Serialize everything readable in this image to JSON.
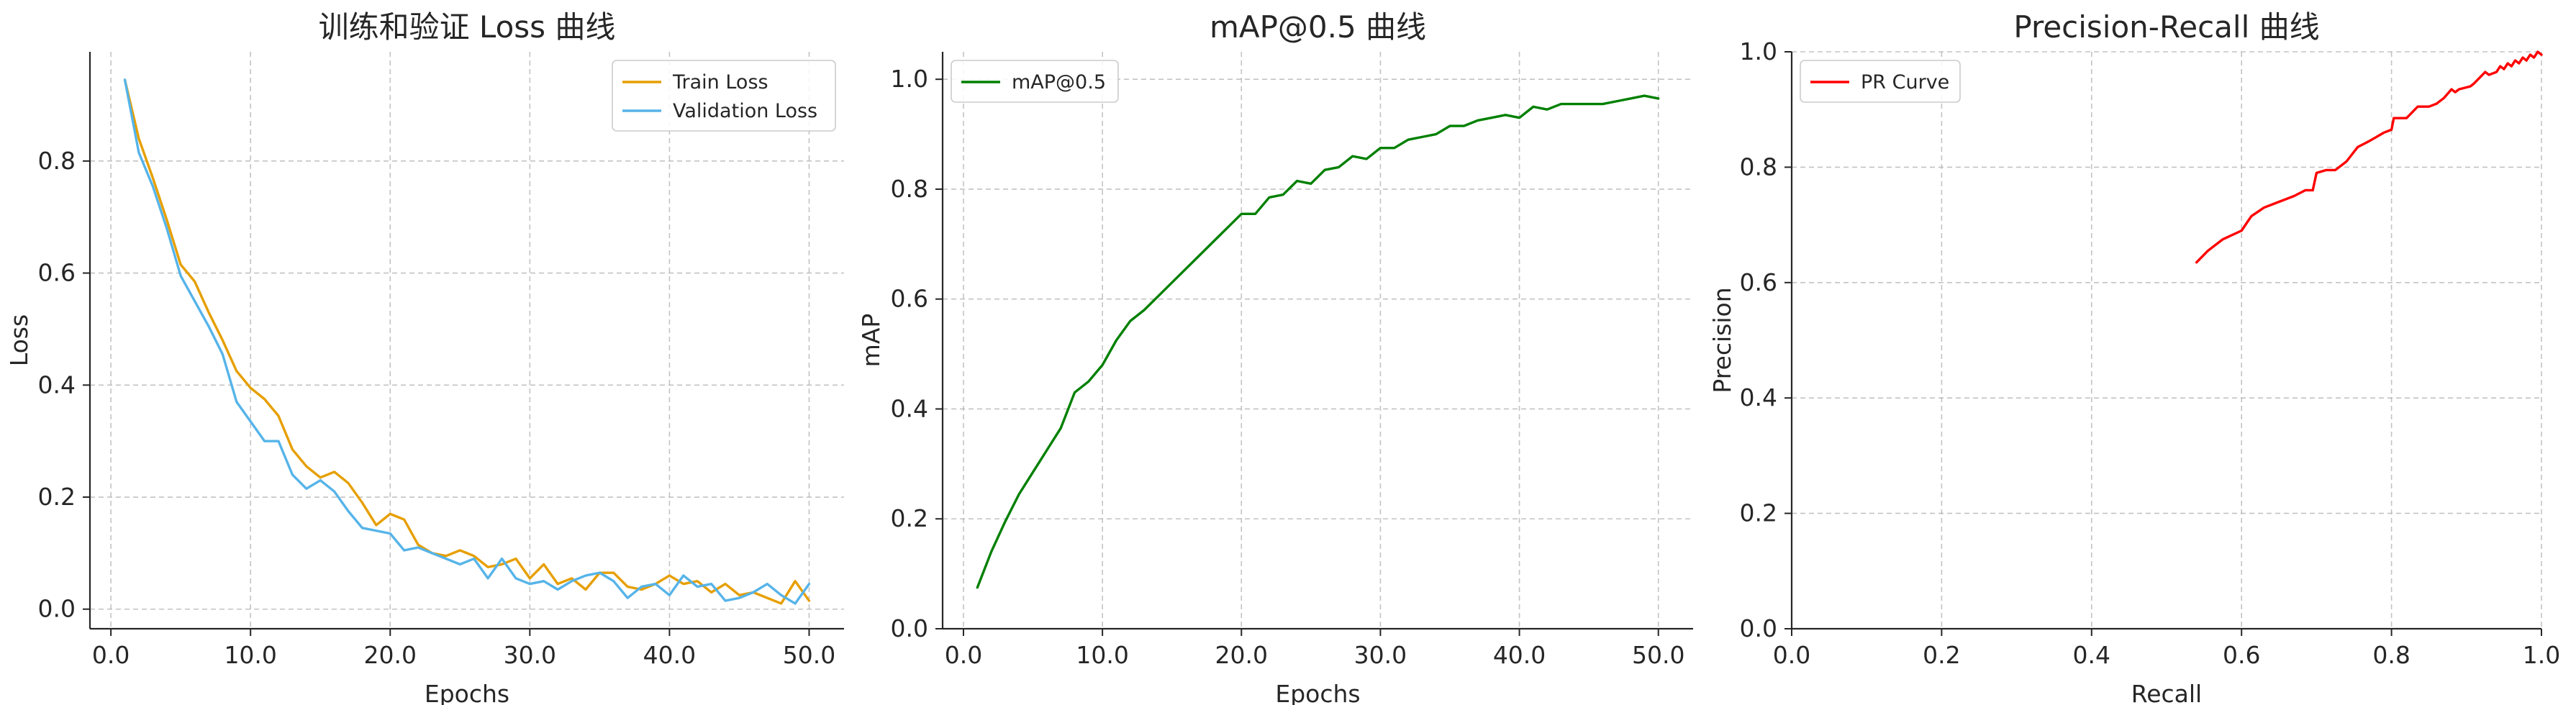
{
  "chart_data": [
    {
      "type": "line",
      "title": "训练和验证 Loss 曲线",
      "xlabel": "Epochs",
      "ylabel": "Loss",
      "xlim": [
        -1.5,
        52.5
      ],
      "ylim": [
        -0.035,
        0.995
      ],
      "xticks": [
        0,
        10,
        20,
        30,
        40,
        50
      ],
      "yticks": [
        0.0,
        0.2,
        0.4,
        0.6,
        0.8
      ],
      "tick_decimals": 1,
      "grid": true,
      "legend": "top-right",
      "x": [
        1,
        2,
        3,
        4,
        5,
        6,
        7,
        8,
        9,
        10,
        11,
        12,
        13,
        14,
        15,
        16,
        17,
        18,
        19,
        20,
        21,
        22,
        23,
        24,
        25,
        26,
        27,
        28,
        29,
        30,
        31,
        32,
        33,
        34,
        35,
        36,
        37,
        38,
        39,
        40,
        41,
        42,
        43,
        44,
        45,
        46,
        47,
        48,
        49,
        50
      ],
      "series": [
        {
          "name": "Train Loss",
          "color": "#e69f00",
          "values": [
            0.945,
            0.84,
            0.77,
            0.695,
            0.615,
            0.585,
            0.53,
            0.48,
            0.425,
            0.395,
            0.375,
            0.345,
            0.285,
            0.255,
            0.235,
            0.245,
            0.225,
            0.19,
            0.15,
            0.17,
            0.16,
            0.115,
            0.1,
            0.095,
            0.105,
            0.095,
            0.075,
            0.08,
            0.09,
            0.055,
            0.08,
            0.045,
            0.055,
            0.035,
            0.065,
            0.065,
            0.04,
            0.035,
            0.045,
            0.06,
            0.045,
            0.05,
            0.03,
            0.045,
            0.025,
            0.03,
            0.02,
            0.01,
            0.05,
            0.015
          ]
        },
        {
          "name": "Validation Loss",
          "color": "#56b4e9",
          "values": [
            0.945,
            0.815,
            0.755,
            0.68,
            0.595,
            0.55,
            0.505,
            0.455,
            0.37,
            0.335,
            0.3,
            0.3,
            0.24,
            0.215,
            0.23,
            0.21,
            0.175,
            0.145,
            0.14,
            0.135,
            0.105,
            0.11,
            0.1,
            0.09,
            0.08,
            0.09,
            0.055,
            0.09,
            0.055,
            0.045,
            0.05,
            0.035,
            0.05,
            0.06,
            0.065,
            0.05,
            0.02,
            0.04,
            0.045,
            0.025,
            0.06,
            0.04,
            0.045,
            0.015,
            0.02,
            0.03,
            0.045,
            0.025,
            0.01,
            0.045
          ]
        }
      ]
    },
    {
      "type": "line",
      "title": "mAP@0.5 曲线",
      "xlabel": "Epochs",
      "ylabel": "mAP",
      "xlim": [
        -1.5,
        52.5
      ],
      "ylim": [
        0.0,
        1.05
      ],
      "xticks": [
        0,
        10,
        20,
        30,
        40,
        50
      ],
      "yticks": [
        0.0,
        0.2,
        0.4,
        0.6,
        0.8,
        1.0
      ],
      "tick_decimals": 1,
      "grid": true,
      "legend": "top-left",
      "x": [
        1,
        2,
        3,
        4,
        5,
        6,
        7,
        8,
        9,
        10,
        11,
        12,
        13,
        14,
        15,
        16,
        17,
        18,
        19,
        20,
        21,
        22,
        23,
        24,
        25,
        26,
        27,
        28,
        29,
        30,
        31,
        32,
        33,
        34,
        35,
        36,
        37,
        38,
        39,
        40,
        41,
        42,
        43,
        44,
        45,
        46,
        47,
        48,
        49,
        50
      ],
      "series": [
        {
          "name": "mAP@0.5",
          "color": "#008000",
          "values": [
            0.075,
            0.14,
            0.195,
            0.245,
            0.285,
            0.325,
            0.365,
            0.43,
            0.45,
            0.48,
            0.525,
            0.56,
            0.58,
            0.605,
            0.63,
            0.655,
            0.68,
            0.705,
            0.73,
            0.755,
            0.755,
            0.785,
            0.79,
            0.815,
            0.81,
            0.835,
            0.84,
            0.86,
            0.855,
            0.875,
            0.875,
            0.89,
            0.895,
            0.9,
            0.915,
            0.915,
            0.925,
            0.93,
            0.935,
            0.93,
            0.95,
            0.945,
            0.955,
            0.955,
            0.955,
            0.955,
            0.96,
            0.965,
            0.97,
            0.965
          ]
        }
      ]
    },
    {
      "type": "line",
      "title": "Precision-Recall 曲线",
      "xlabel": "Recall",
      "ylabel": "Precision",
      "xlim": [
        0.0,
        1.0
      ],
      "ylim": [
        0.0,
        1.0
      ],
      "xticks": [
        0.0,
        0.2,
        0.4,
        0.6,
        0.8,
        1.0
      ],
      "yticks": [
        0.0,
        0.2,
        0.4,
        0.6,
        0.8,
        1.0
      ],
      "tick_decimals": 1,
      "grid": true,
      "legend": "top-left",
      "series": [
        {
          "name": "PR Curve",
          "color": "#ff0000",
          "x": [
            0.54,
            0.555,
            0.575,
            0.6,
            0.613,
            0.63,
            0.65,
            0.67,
            0.685,
            0.695,
            0.7,
            0.713,
            0.725,
            0.74,
            0.755,
            0.77,
            0.79,
            0.8,
            0.803,
            0.82,
            0.835,
            0.85,
            0.86,
            0.87,
            0.88,
            0.885,
            0.89,
            0.905,
            0.91,
            0.925,
            0.93,
            0.94,
            0.945,
            0.95,
            0.955,
            0.96,
            0.965,
            0.97,
            0.975,
            0.98,
            0.985,
            0.99,
            0.995,
            1.0
          ],
          "y": [
            0.635,
            0.655,
            0.675,
            0.69,
            0.715,
            0.73,
            0.74,
            0.75,
            0.76,
            0.76,
            0.79,
            0.795,
            0.795,
            0.81,
            0.835,
            0.845,
            0.86,
            0.865,
            0.885,
            0.885,
            0.905,
            0.905,
            0.91,
            0.92,
            0.935,
            0.93,
            0.935,
            0.94,
            0.945,
            0.965,
            0.96,
            0.965,
            0.975,
            0.97,
            0.98,
            0.975,
            0.985,
            0.98,
            0.99,
            0.985,
            0.995,
            0.99,
            1.0,
            0.995
          ]
        }
      ]
    }
  ]
}
